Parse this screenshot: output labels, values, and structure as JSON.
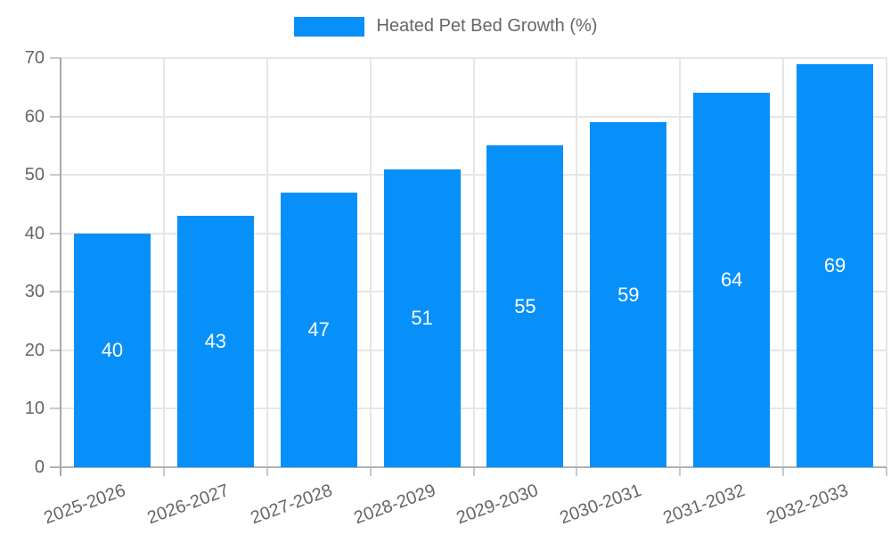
{
  "chart_data": {
    "type": "bar",
    "title": "Heated Pet Bed Growth (%)",
    "legend_position": "top",
    "categories": [
      "2025-2026",
      "2026-2027",
      "2027-2028",
      "2028-2029",
      "2029-2030",
      "2030-2031",
      "2031-2032",
      "2032-2033"
    ],
    "values": [
      40,
      43,
      47,
      51,
      55,
      59,
      64,
      69
    ],
    "value_labels": [
      "40",
      "43",
      "47",
      "51",
      "55",
      "59",
      "64",
      "69"
    ],
    "xlabel": "",
    "ylabel": "",
    "ylim": [
      0,
      70
    ],
    "yticks": [
      0,
      10,
      20,
      30,
      40,
      50,
      60,
      70
    ],
    "grid": true,
    "x_label_rotation_deg": -20,
    "colors": {
      "bar": "#0890fa",
      "value_label": "#ffffff",
      "tick_label": "#666666",
      "legend_label": "#666666",
      "gridline": "#e6e6e6",
      "tick_mark": "#c9c9c9",
      "axis_line": "#a8a8a8",
      "zero_line": "#b2b2b2",
      "background": "#ffffff"
    }
  }
}
